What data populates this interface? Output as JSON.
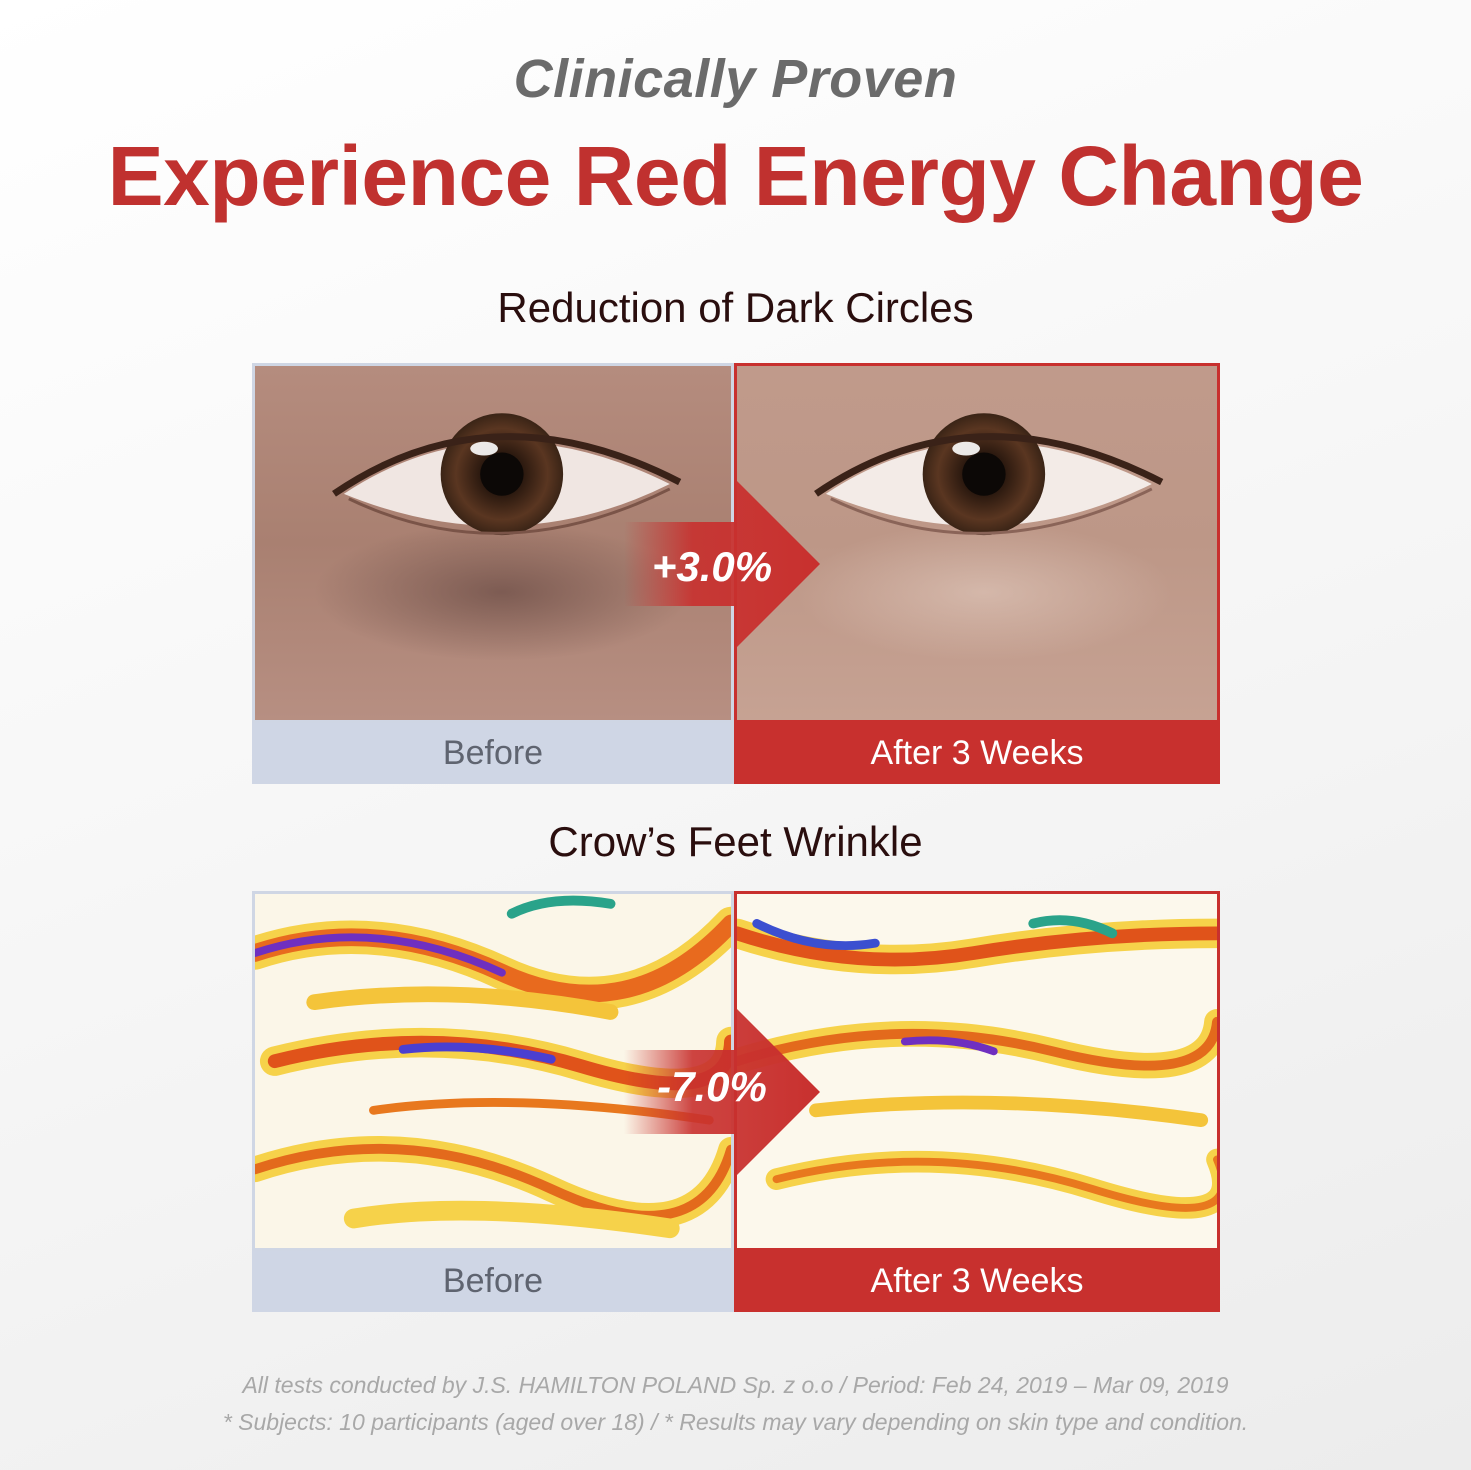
{
  "header": {
    "kicker": "Clinically Proven",
    "headline": "Experience Red Energy Change"
  },
  "sections": [
    {
      "title": "Reduction of Dark Circles",
      "change": "+3.0%",
      "before_label": "Before",
      "after_label": "After 3 Weeks"
    },
    {
      "title": "Crow’s Feet Wrinkle",
      "change": "-7.0%",
      "before_label": "Before",
      "after_label": "After 3 Weeks"
    }
  ],
  "footnote": {
    "line1": "All tests conducted by J.S. HAMILTON POLAND Sp. z o.o / Period: Feb 24, 2019 – Mar 09, 2019",
    "line2": "* Subjects: 10 participants (aged over 18) / * Results may vary depending on skin type and condition."
  },
  "colors": {
    "brand_red": "#c8302e",
    "before_blue": "#cfd6e5"
  }
}
